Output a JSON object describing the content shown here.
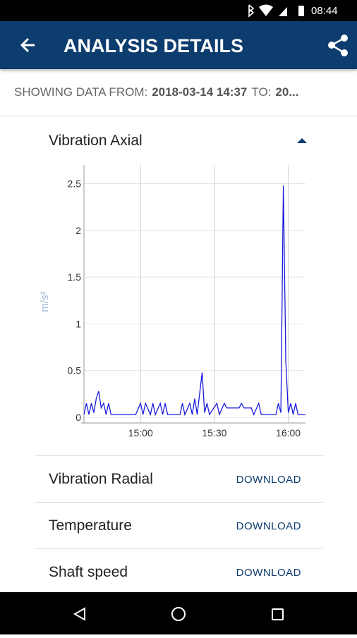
{
  "status_bar": {
    "time": "08:44"
  },
  "app_bar": {
    "title": "ANALYSIS DETAILS"
  },
  "range": {
    "from_label": "SHOWING DATA FROM:",
    "from": "2018-03-14 14:37",
    "to_label": "TO:",
    "to": "20..."
  },
  "expanded_section": {
    "title": "Vibration Axial"
  },
  "chart_data": {
    "type": "line",
    "y_label": "m/s²",
    "x": [
      "14:37",
      "14:38",
      "14:39",
      "14:40",
      "14:41",
      "14:42",
      "14:43",
      "14:44",
      "14:45",
      "14:46",
      "14:47",
      "14:48",
      "14:52",
      "14:58",
      "15:00",
      "15:01",
      "15:02",
      "15:04",
      "15:05",
      "15:06",
      "15:08",
      "15:09",
      "15:10",
      "15:11",
      "15:16",
      "15:17",
      "15:18",
      "15:20",
      "15:21",
      "15:22",
      "15:23",
      "15:25",
      "15:26",
      "15:27",
      "15:28",
      "15:31",
      "15:32",
      "15:34",
      "15:35",
      "15:40",
      "15:41",
      "15:42",
      "15:45",
      "15:46",
      "15:48",
      "15:49",
      "15:55",
      "15:56",
      "15:57",
      "15:58",
      "15:59",
      "16:00",
      "16:01",
      "16:02",
      "16:03",
      "16:04",
      "16:07"
    ],
    "series": [
      {
        "color": "#1a1adc",
        "values": [
          0.03,
          0.15,
          0.03,
          0.15,
          0.05,
          0.2,
          0.28,
          0.1,
          0.15,
          0.03,
          0.15,
          0.03,
          0.03,
          0.03,
          0.15,
          0.03,
          0.15,
          0.03,
          0.15,
          0.03,
          0.15,
          0.03,
          0.15,
          0.03,
          0.03,
          0.15,
          0.03,
          0.15,
          0.03,
          0.2,
          0.03,
          0.48,
          0.05,
          0.15,
          0.03,
          0.15,
          0.03,
          0.15,
          0.1,
          0.1,
          0.15,
          0.1,
          0.1,
          0.03,
          0.15,
          0.03,
          0.03,
          0.15,
          0.05,
          2.48,
          0.6,
          0.05,
          0.15,
          0.03,
          0.15,
          0.03,
          0.03
        ]
      }
    ],
    "xlim": [
      "14:37",
      "16:07"
    ],
    "xticks": [
      "15:00",
      "15:30",
      "16:00"
    ],
    "ylim": [
      0,
      2.7
    ],
    "yticks": [
      0,
      0.5,
      1,
      1.5,
      2,
      2.5
    ],
    "grid": true
  },
  "downloads": [
    {
      "title": "Vibration Radial",
      "action": "DOWNLOAD"
    },
    {
      "title": "Temperature",
      "action": "DOWNLOAD"
    },
    {
      "title": "Shaft speed",
      "action": "DOWNLOAD"
    }
  ]
}
